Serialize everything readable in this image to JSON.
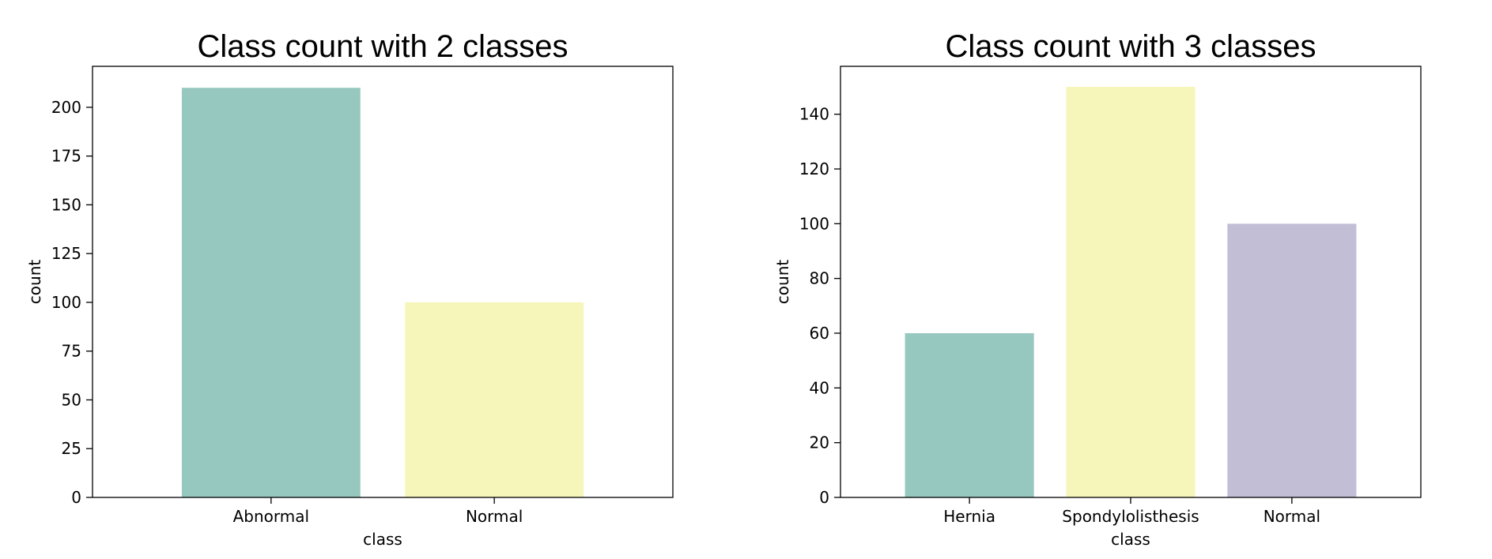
{
  "chart_data": [
    {
      "type": "bar",
      "title": "Class count with 2 classes",
      "xlabel": "class",
      "ylabel": "count",
      "categories": [
        "Abnormal",
        "Normal"
      ],
      "values": [
        210,
        100
      ],
      "colors": [
        "#97c8c0",
        "#f6f6bb"
      ],
      "ylim": [
        0,
        221
      ],
      "yticks": [
        0,
        25,
        50,
        75,
        100,
        125,
        150,
        175,
        200
      ],
      "grid": false,
      "legend": "none"
    },
    {
      "type": "bar",
      "title": "Class count with 3 classes",
      "xlabel": "class",
      "ylabel": "count",
      "categories": [
        "Hernia",
        "Spondylolisthesis",
        "Normal"
      ],
      "values": [
        60,
        150,
        100
      ],
      "colors": [
        "#97c8c0",
        "#f6f6bb",
        "#c2bed6"
      ],
      "ylim": [
        0,
        157.5
      ],
      "yticks": [
        0,
        20,
        40,
        60,
        80,
        100,
        120,
        140
      ],
      "grid": false,
      "legend": "none"
    }
  ]
}
